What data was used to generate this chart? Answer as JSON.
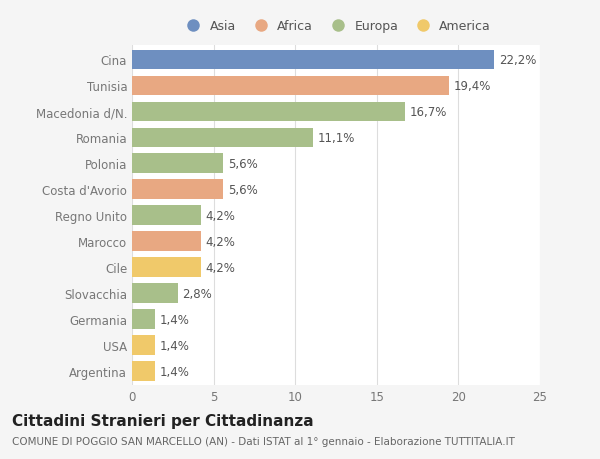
{
  "countries": [
    "Cina",
    "Tunisia",
    "Macedonia d/N.",
    "Romania",
    "Polonia",
    "Costa d'Avorio",
    "Regno Unito",
    "Marocco",
    "Cile",
    "Slovacchia",
    "Germania",
    "USA",
    "Argentina"
  ],
  "values": [
    22.2,
    19.4,
    16.7,
    11.1,
    5.6,
    5.6,
    4.2,
    4.2,
    4.2,
    2.8,
    1.4,
    1.4,
    1.4
  ],
  "labels": [
    "22,2%",
    "19,4%",
    "16,7%",
    "11,1%",
    "5,6%",
    "5,6%",
    "4,2%",
    "4,2%",
    "4,2%",
    "2,8%",
    "1,4%",
    "1,4%",
    "1,4%"
  ],
  "colors": [
    "#6e8fc0",
    "#e8a882",
    "#a8bf8a",
    "#a8bf8a",
    "#a8bf8a",
    "#e8a882",
    "#a8bf8a",
    "#e8a882",
    "#f0c96a",
    "#a8bf8a",
    "#a8bf8a",
    "#f0c96a",
    "#f0c96a"
  ],
  "legend_labels": [
    "Asia",
    "Africa",
    "Europa",
    "America"
  ],
  "legend_colors": [
    "#6e8fc0",
    "#e8a882",
    "#a8bf8a",
    "#f0c96a"
  ],
  "title": "Cittadini Stranieri per Cittadinanza",
  "subtitle": "COMUNE DI POGGIO SAN MARCELLO (AN) - Dati ISTAT al 1° gennaio - Elaborazione TUTTITALIA.IT",
  "xlim": [
    0,
    25
  ],
  "xticks": [
    0,
    5,
    10,
    15,
    20,
    25
  ],
  "background_color": "#f5f5f5",
  "plot_background": "#ffffff",
  "bar_height": 0.75,
  "label_fontsize": 8.5,
  "tick_fontsize": 8.5,
  "title_fontsize": 11,
  "subtitle_fontsize": 7.5
}
